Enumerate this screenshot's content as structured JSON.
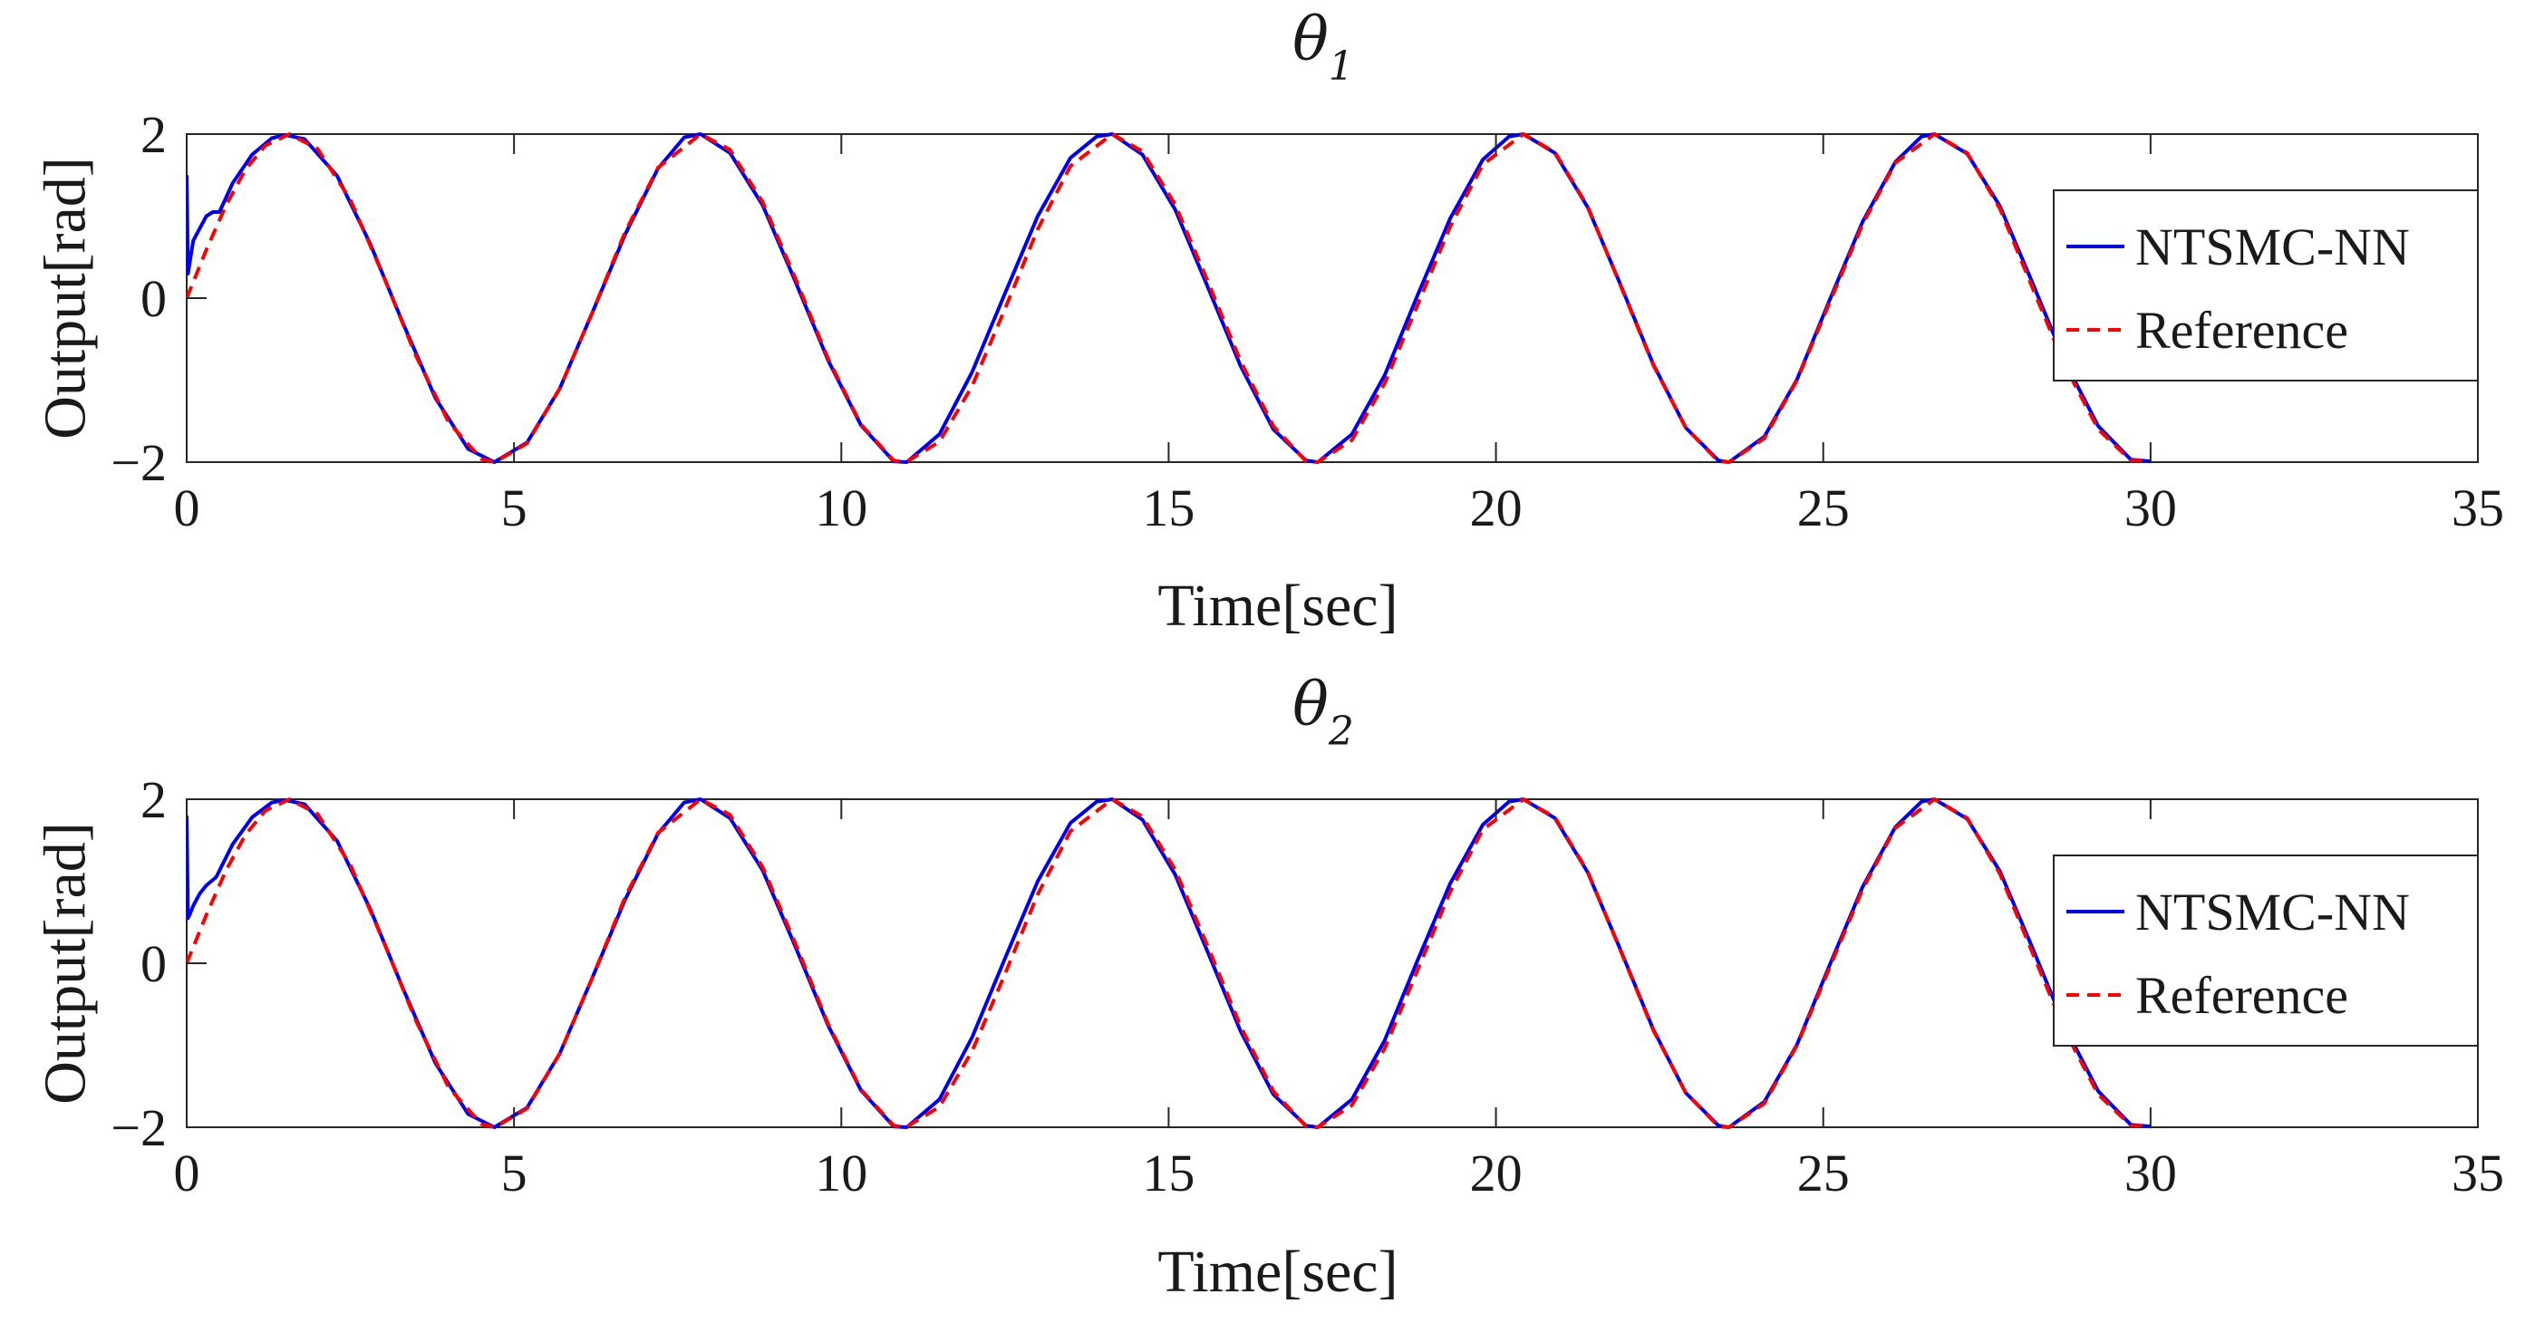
{
  "chart_data": [
    {
      "type": "line",
      "title": "θ",
      "title_subscript": "1",
      "xlabel": "Time[sec]",
      "ylabel": "Output[rad]",
      "xlim": [
        0,
        35
      ],
      "ylim": [
        -2,
        2
      ],
      "xticks": [
        0,
        5,
        10,
        15,
        20,
        25,
        30,
        35
      ],
      "yticks": [
        -2,
        0,
        2
      ],
      "xtick_labels": [
        "0",
        "5",
        "10",
        "15",
        "20",
        "25",
        "30",
        "35"
      ],
      "ytick_labels": [
        "−2",
        "0",
        "2"
      ],
      "grid": false,
      "legend_position": "top-right",
      "series": [
        {
          "name": "NTSMC-NN",
          "color": "#0000ee",
          "style": "solid",
          "x": [
            0,
            0.02,
            0.05,
            0.1,
            0.2,
            0.3,
            0.4,
            0.5,
            0.7,
            1.0,
            1.3,
            1.5,
            1.8,
            2.3,
            2.8,
            3.3,
            3.8,
            4.3,
            4.7,
            5.2,
            5.7,
            6.2,
            6.7,
            7.2,
            7.6,
            7.85,
            8.3,
            8.8,
            9.3,
            9.8,
            10.3,
            10.8,
            11.0,
            11.5,
            12.0,
            12.5,
            13.0,
            13.5,
            13.9,
            14.14,
            14.6,
            15.1,
            15.6,
            16.1,
            16.6,
            17.1,
            17.28,
            17.8,
            18.3,
            18.8,
            19.3,
            19.8,
            20.2,
            20.42,
            20.9,
            21.4,
            21.9,
            22.4,
            22.9,
            23.4,
            23.56,
            24.1,
            24.6,
            25.1,
            25.6,
            26.1,
            26.5,
            26.7,
            27.2,
            27.7,
            28.2,
            28.7,
            29.2,
            29.7,
            30.0
          ],
          "y": [
            1.5,
            0.3,
            0.45,
            0.7,
            0.85,
            1.0,
            1.05,
            1.05,
            1.4,
            1.75,
            1.95,
            1.99,
            1.94,
            1.49,
            0.67,
            -0.3,
            -1.22,
            -1.84,
            -2.0,
            -1.76,
            -1.1,
            -0.17,
            0.78,
            1.58,
            1.96,
            2.0,
            1.77,
            1.13,
            0.2,
            -0.76,
            -1.55,
            -1.99,
            -2.0,
            -1.66,
            -0.9,
            0.06,
            1.0,
            1.71,
            1.97,
            2.0,
            1.75,
            1.08,
            0.13,
            -0.83,
            -1.6,
            -1.98,
            -2.0,
            -1.66,
            -0.94,
            0.03,
            0.97,
            1.69,
            1.97,
            2.0,
            1.77,
            1.11,
            0.17,
            -0.8,
            -1.58,
            -1.98,
            -2.0,
            -1.69,
            -0.99,
            -0.02,
            0.93,
            1.66,
            1.97,
            2.0,
            1.76,
            1.12,
            0.18,
            -0.79,
            -1.56,
            -1.97,
            -1.99
          ]
        },
        {
          "name": "Reference",
          "color": "#ff0000",
          "style": "dashed",
          "x": [
            0,
            0.3,
            0.6,
            0.9,
            1.2,
            1.57,
            2.0,
            2.5,
            3.0,
            3.5,
            4.0,
            4.5,
            4.71,
            5.2,
            5.7,
            6.2,
            6.7,
            7.2,
            7.85,
            8.3,
            8.8,
            9.3,
            9.8,
            10.3,
            10.8,
            10.99,
            11.5,
            12.0,
            12.5,
            13.0,
            13.5,
            14.14,
            14.6,
            15.1,
            15.6,
            16.1,
            16.6,
            17.1,
            17.28,
            17.8,
            18.3,
            18.8,
            19.3,
            19.8,
            20.42,
            20.9,
            21.4,
            21.9,
            22.4,
            22.9,
            23.4,
            23.56,
            24.1,
            24.6,
            25.1,
            25.6,
            26.1,
            26.7,
            27.2,
            27.7,
            28.2,
            28.7,
            29.2,
            29.7,
            30.0
          ],
          "y": [
            0,
            0.59,
            1.13,
            1.57,
            1.86,
            2.0,
            1.82,
            1.2,
            0.28,
            -0.7,
            -1.51,
            -1.96,
            -2.0,
            -1.77,
            -1.1,
            -0.17,
            0.81,
            1.59,
            2.0,
            1.81,
            1.17,
            0.24,
            -0.74,
            -1.54,
            -1.98,
            -2.0,
            -1.75,
            -1.07,
            -0.13,
            0.84,
            1.61,
            2.0,
            1.79,
            1.14,
            0.2,
            -0.77,
            -1.56,
            -1.99,
            -2.0,
            -1.73,
            -1.04,
            -0.09,
            0.87,
            1.63,
            2.0,
            1.78,
            1.12,
            0.16,
            -0.81,
            -1.58,
            -1.99,
            -2.0,
            -1.71,
            -1.0,
            -0.05,
            0.9,
            1.65,
            2.0,
            1.77,
            1.09,
            0.12,
            -0.84,
            -1.6,
            -1.98,
            -1.98
          ]
        }
      ]
    },
    {
      "type": "line",
      "title": "θ",
      "title_subscript": "2",
      "xlabel": "Time[sec]",
      "ylabel": "Output[rad]",
      "xlim": [
        0,
        35
      ],
      "ylim": [
        -2,
        2
      ],
      "xticks": [
        0,
        5,
        10,
        15,
        20,
        25,
        30,
        35
      ],
      "yticks": [
        -2,
        0,
        2
      ],
      "xtick_labels": [
        "0",
        "5",
        "10",
        "15",
        "20",
        "25",
        "30",
        "35"
      ],
      "ytick_labels": [
        "−2",
        "0",
        "2"
      ],
      "grid": false,
      "legend_position": "top-right",
      "series": [
        {
          "name": "NTSMC-NN",
          "color": "#0000ee",
          "style": "solid",
          "x": [
            0,
            0.02,
            0.05,
            0.1,
            0.2,
            0.3,
            0.45,
            0.7,
            1.0,
            1.3,
            1.5,
            1.8,
            2.3,
            2.8,
            3.3,
            3.8,
            4.3,
            4.7,
            5.2,
            5.7,
            6.2,
            6.7,
            7.2,
            7.6,
            7.85,
            8.3,
            8.8,
            9.3,
            9.8,
            10.3,
            10.8,
            11.0,
            11.5,
            12.0,
            12.5,
            13.0,
            13.5,
            13.9,
            14.14,
            14.6,
            15.1,
            15.6,
            16.1,
            16.6,
            17.1,
            17.28,
            17.8,
            18.3,
            18.8,
            19.3,
            19.8,
            20.2,
            20.42,
            20.9,
            21.4,
            21.9,
            22.4,
            22.9,
            23.4,
            23.56,
            24.1,
            24.6,
            25.1,
            25.6,
            26.1,
            26.5,
            26.7,
            27.2,
            27.7,
            28.2,
            28.7,
            29.2,
            29.7,
            30.0
          ],
          "y": [
            1.8,
            0.55,
            0.6,
            0.7,
            0.85,
            0.95,
            1.05,
            1.45,
            1.78,
            1.96,
            1.99,
            1.94,
            1.49,
            0.67,
            -0.3,
            -1.22,
            -1.84,
            -2.0,
            -1.76,
            -1.1,
            -0.17,
            0.78,
            1.58,
            1.96,
            2.0,
            1.77,
            1.13,
            0.2,
            -0.76,
            -1.55,
            -1.99,
            -2.0,
            -1.66,
            -0.9,
            0.06,
            1.0,
            1.71,
            1.97,
            2.0,
            1.75,
            1.08,
            0.13,
            -0.83,
            -1.6,
            -1.98,
            -2.0,
            -1.66,
            -0.94,
            0.03,
            0.97,
            1.69,
            1.97,
            2.0,
            1.77,
            1.11,
            0.17,
            -0.8,
            -1.58,
            -1.98,
            -2.0,
            -1.69,
            -0.99,
            -0.02,
            0.93,
            1.66,
            1.97,
            2.0,
            1.76,
            1.12,
            0.18,
            -0.79,
            -1.56,
            -1.97,
            -1.99
          ]
        },
        {
          "name": "Reference",
          "color": "#ff0000",
          "style": "dashed",
          "x": [
            0,
            0.3,
            0.6,
            0.9,
            1.2,
            1.57,
            2.0,
            2.5,
            3.0,
            3.5,
            4.0,
            4.5,
            4.71,
            5.2,
            5.7,
            6.2,
            6.7,
            7.2,
            7.85,
            8.3,
            8.8,
            9.3,
            9.8,
            10.3,
            10.8,
            10.99,
            11.5,
            12.0,
            12.5,
            13.0,
            13.5,
            14.14,
            14.6,
            15.1,
            15.6,
            16.1,
            16.6,
            17.1,
            17.28,
            17.8,
            18.3,
            18.8,
            19.3,
            19.8,
            20.42,
            20.9,
            21.4,
            21.9,
            22.4,
            22.9,
            23.4,
            23.56,
            24.1,
            24.6,
            25.1,
            25.6,
            26.1,
            26.7,
            27.2,
            27.7,
            28.2,
            28.7,
            29.2,
            29.7,
            30.0
          ],
          "y": [
            0,
            0.59,
            1.13,
            1.57,
            1.86,
            2.0,
            1.82,
            1.2,
            0.28,
            -0.7,
            -1.51,
            -1.96,
            -2.0,
            -1.77,
            -1.1,
            -0.17,
            0.81,
            1.59,
            2.0,
            1.81,
            1.17,
            0.24,
            -0.74,
            -1.54,
            -1.98,
            -2.0,
            -1.75,
            -1.07,
            -0.13,
            0.84,
            1.61,
            2.0,
            1.79,
            1.14,
            0.2,
            -0.77,
            -1.56,
            -1.99,
            -2.0,
            -1.73,
            -1.04,
            -0.09,
            0.87,
            1.63,
            2.0,
            1.78,
            1.12,
            0.16,
            -0.81,
            -1.58,
            -1.99,
            -2.0,
            -1.71,
            -1.0,
            -0.05,
            0.9,
            1.65,
            2.0,
            1.77,
            1.09,
            0.12,
            -0.84,
            -1.6,
            -1.98,
            -1.98
          ]
        }
      ]
    }
  ]
}
